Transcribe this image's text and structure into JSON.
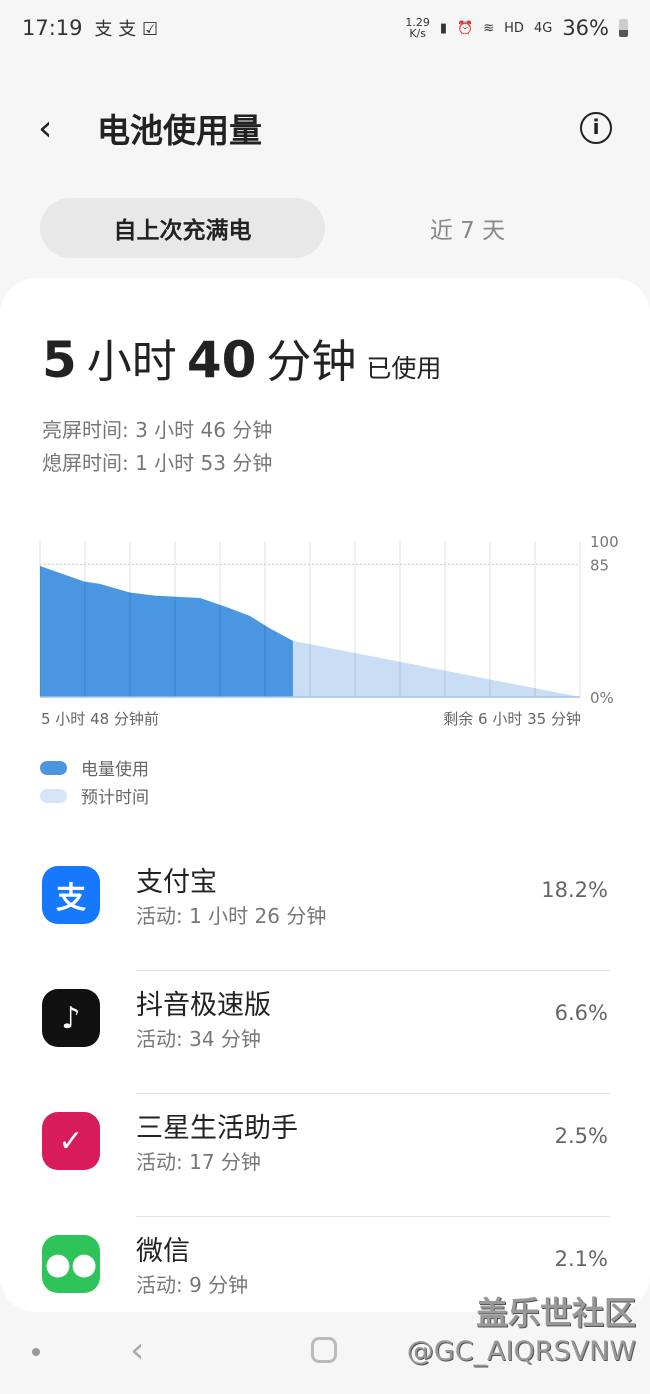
{
  "status": {
    "time": "17:19",
    "notif_icons": [
      "alipay-icon",
      "alipay-icon",
      "checkbox-icon"
    ],
    "net_speed": "1.29\nK/s",
    "hd": "HD",
    "net": "4G",
    "battery": "36%"
  },
  "header": {
    "title": "电池使用量",
    "back_icon": "chevron-left-icon",
    "info_icon": "info-icon"
  },
  "tabs": [
    {
      "label": "自上次充满电",
      "selected": true
    },
    {
      "label": "近 7 天",
      "selected": false
    }
  ],
  "summary": {
    "hours": "5",
    "hour_unit": "小时",
    "minutes": "40",
    "minute_unit": "分钟",
    "suffix": "已使用",
    "screen_on": "亮屏时间:  3 小时 46 分钟",
    "screen_off": "熄屏时间:   1 小时 53 分钟"
  },
  "chart_data": {
    "type": "area",
    "x_unit": "hours relative to now",
    "xlim": [
      -5.8,
      6.583
    ],
    "ylim": [
      0,
      100
    ],
    "y_ticks": [
      "100",
      "85",
      "0%"
    ],
    "x_start_label": "5 小时 48 分钟前",
    "x_end_label": "剩余 6 小时 35 分钟",
    "series": [
      {
        "name": "电量使用",
        "color": "#4a96e0",
        "points": [
          [
            -5.8,
            84
          ],
          [
            -4.79,
            74
          ],
          [
            -4.43,
            72.5
          ],
          [
            -3.74,
            67
          ],
          [
            -3.17,
            65
          ],
          [
            -2.13,
            63.5
          ],
          [
            -1.56,
            58
          ],
          [
            -0.99,
            52
          ],
          [
            -0.53,
            44
          ],
          [
            0,
            36
          ]
        ]
      },
      {
        "name": "预计时间",
        "color": "#c9def4",
        "points": [
          [
            0,
            36
          ],
          [
            6.583,
            0
          ]
        ]
      }
    ],
    "grid": "vertical",
    "reference_line": 85
  },
  "apps": [
    {
      "name": "支付宝",
      "activity": "活动: 1 小时 26 分钟",
      "percent": "18.2%",
      "icon": "支",
      "color": "#1677ff"
    },
    {
      "name": "抖音极速版",
      "activity": "活动: 34 分钟",
      "percent": "6.6%",
      "icon": "♪",
      "color": "#111111"
    },
    {
      "name": "三星生活助手",
      "activity": "活动: 17 分钟",
      "percent": "2.5%",
      "icon": "✓",
      "color": "#d81b5a"
    },
    {
      "name": "微信",
      "activity": "活动: 9 分钟",
      "percent": "2.1%",
      "icon": "●●",
      "color": "#2ec45a"
    }
  ],
  "watermark": {
    "line1": "盖乐世社区",
    "line2": "@GC_AIQRSVNW"
  }
}
